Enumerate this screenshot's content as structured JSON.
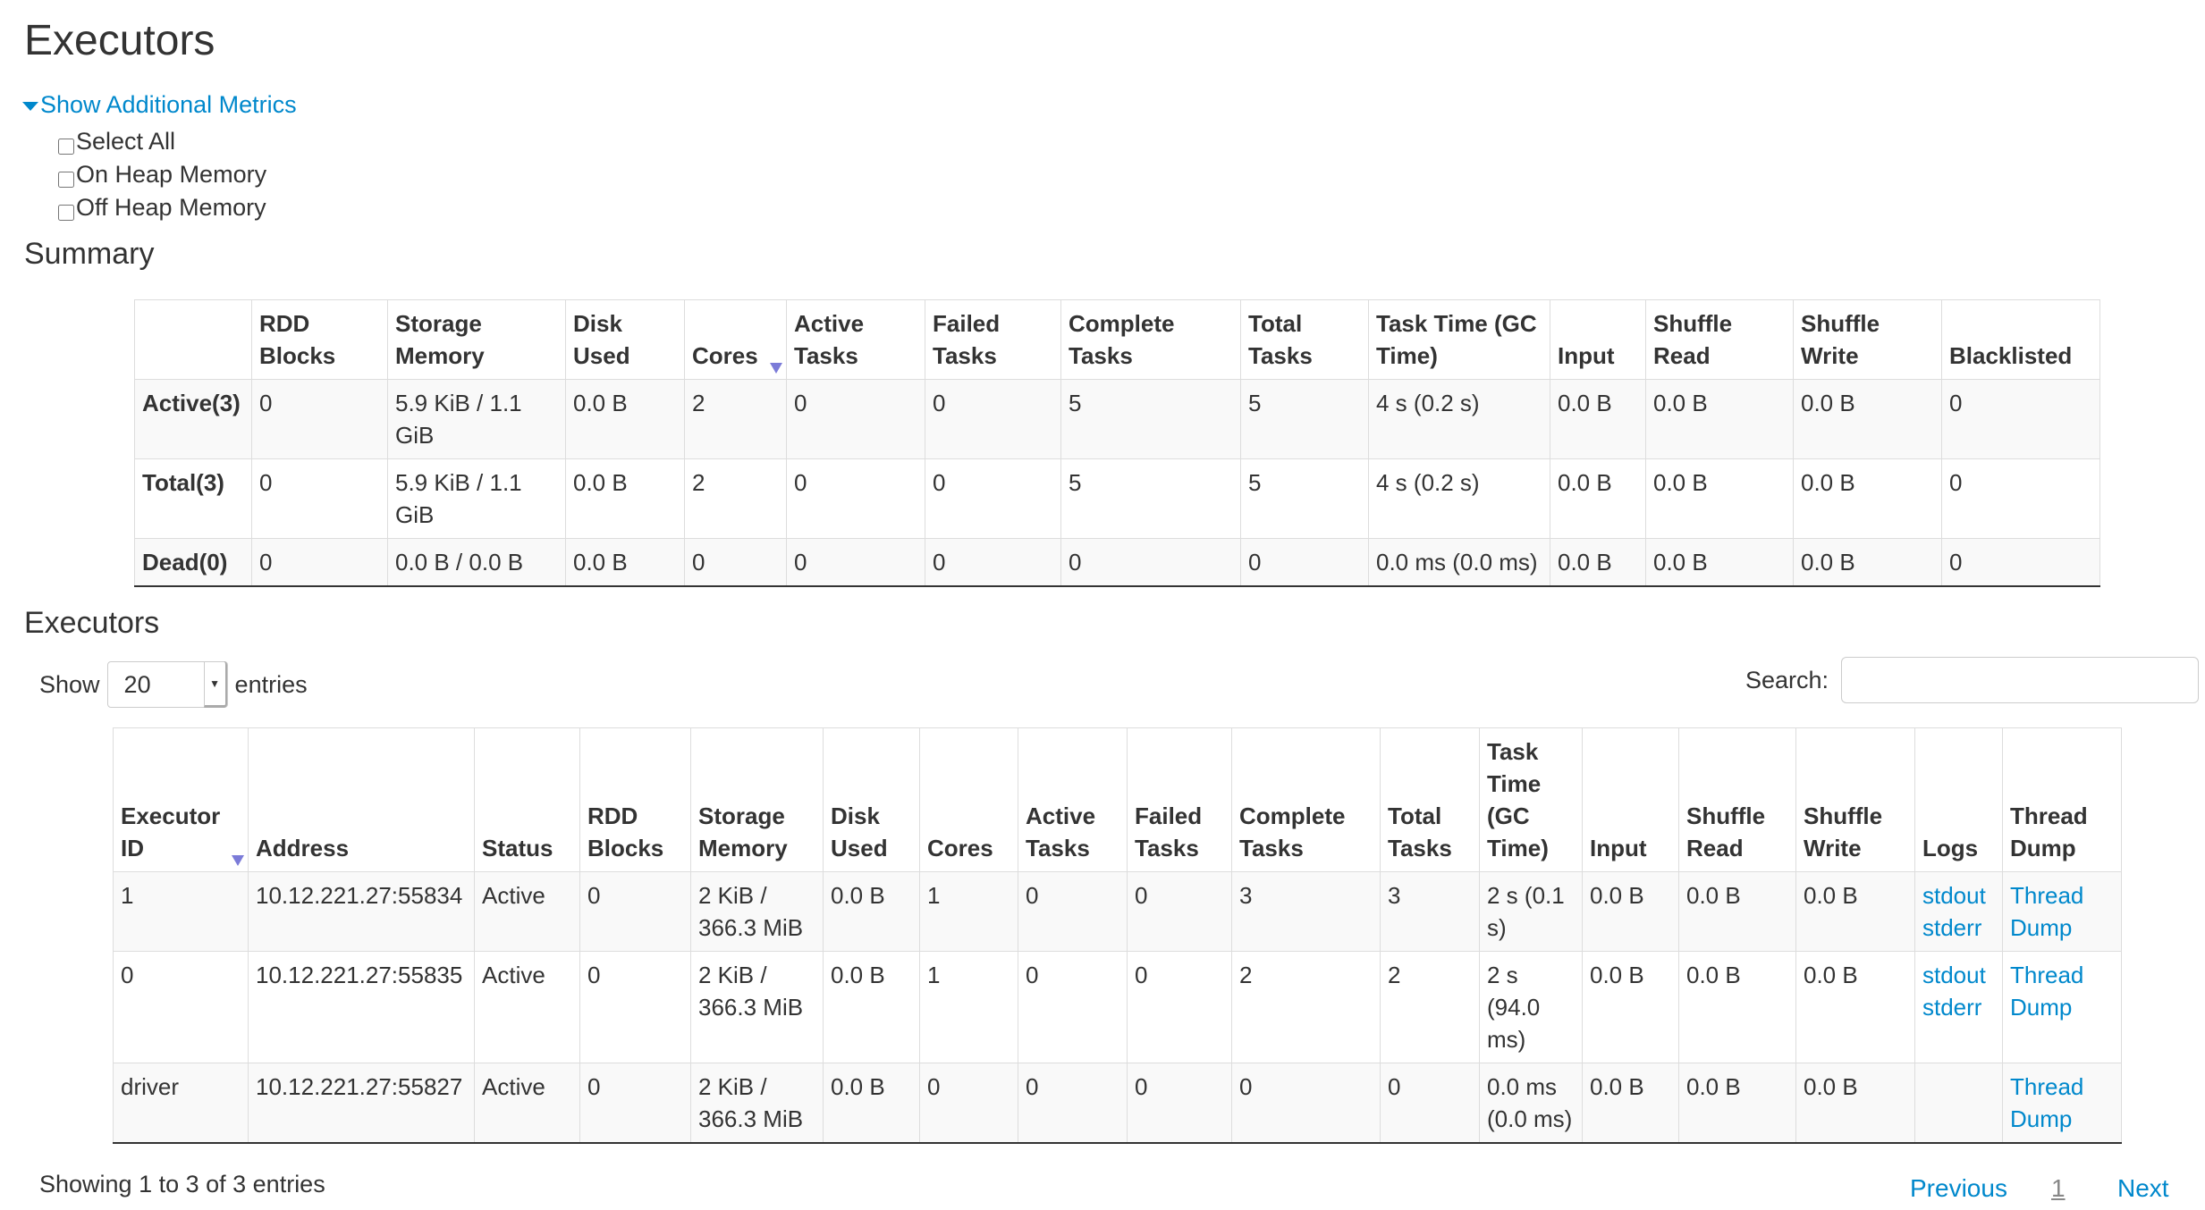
{
  "page_title": "Executors",
  "metrics": {
    "toggle_label": "Show Additional Metrics",
    "options": [
      "Select All",
      "On Heap Memory",
      "Off Heap Memory"
    ]
  },
  "summary": {
    "title": "Summary",
    "columns": [
      "",
      "RDD Blocks",
      "Storage Memory",
      "Disk Used",
      "Cores",
      "Active Tasks",
      "Failed Tasks",
      "Complete Tasks",
      "Total Tasks",
      "Task Time (GC Time)",
      "Input",
      "Shuffle Read",
      "Shuffle Write",
      "Blacklisted"
    ],
    "rows": [
      [
        "Active(3)",
        "0",
        "5.9 KiB / 1.1 GiB",
        "0.0 B",
        "2",
        "0",
        "0",
        "5",
        "5",
        "4 s (0.2 s)",
        "0.0 B",
        "0.0 B",
        "0.0 B",
        "0"
      ],
      [
        "Total(3)",
        "0",
        "5.9 KiB / 1.1 GiB",
        "0.0 B",
        "2",
        "0",
        "0",
        "5",
        "5",
        "4 s (0.2 s)",
        "0.0 B",
        "0.0 B",
        "0.0 B",
        "0"
      ],
      [
        "Dead(0)",
        "0",
        "0.0 B / 0.0 B",
        "0.0 B",
        "0",
        "0",
        "0",
        "0",
        "0",
        "0.0 ms (0.0 ms)",
        "0.0 B",
        "0.0 B",
        "0.0 B",
        "0"
      ]
    ]
  },
  "executors": {
    "title": "Executors",
    "show_label": "Show",
    "entries_label": "entries",
    "page_size": "20",
    "search_label": "Search:",
    "search_value": "",
    "columns": [
      "Executor ID",
      "Address",
      "Status",
      "RDD Blocks",
      "Storage Memory",
      "Disk Used",
      "Cores",
      "Active Tasks",
      "Failed Tasks",
      "Complete Tasks",
      "Total Tasks",
      "Task Time (GC Time)",
      "Input",
      "Shuffle Read",
      "Shuffle Write",
      "Logs",
      "Thread Dump"
    ],
    "rows": [
      {
        "cells": [
          "1",
          "10.12.221.27:55834",
          "Active",
          "0",
          "2 KiB / 366.3 MiB",
          "0.0 B",
          "1",
          "0",
          "0",
          "3",
          "3",
          "2 s (0.1 s)",
          "0.0 B",
          "0.0 B",
          "0.0 B"
        ],
        "logs": [
          "stdout",
          "stderr"
        ],
        "thread_dump": "Thread Dump"
      },
      {
        "cells": [
          "0",
          "10.12.221.27:55835",
          "Active",
          "0",
          "2 KiB / 366.3 MiB",
          "0.0 B",
          "1",
          "0",
          "0",
          "2",
          "2",
          "2 s (94.0 ms)",
          "0.0 B",
          "0.0 B",
          "0.0 B"
        ],
        "logs": [
          "stdout",
          "stderr"
        ],
        "thread_dump": "Thread Dump"
      },
      {
        "cells": [
          "driver",
          "10.12.221.27:55827",
          "Active",
          "0",
          "2 KiB / 366.3 MiB",
          "0.0 B",
          "0",
          "0",
          "0",
          "0",
          "0",
          "0.0 ms (0.0 ms)",
          "0.0 B",
          "0.0 B",
          "0.0 B"
        ],
        "logs": [],
        "thread_dump": "Thread Dump"
      }
    ],
    "info": "Showing 1 to 3 of 3 entries",
    "pagination": {
      "previous": "Previous",
      "current": "1",
      "next": "Next"
    }
  },
  "colors": {
    "link": "#0088cc",
    "sort_arrow": "#7b7bd8"
  }
}
